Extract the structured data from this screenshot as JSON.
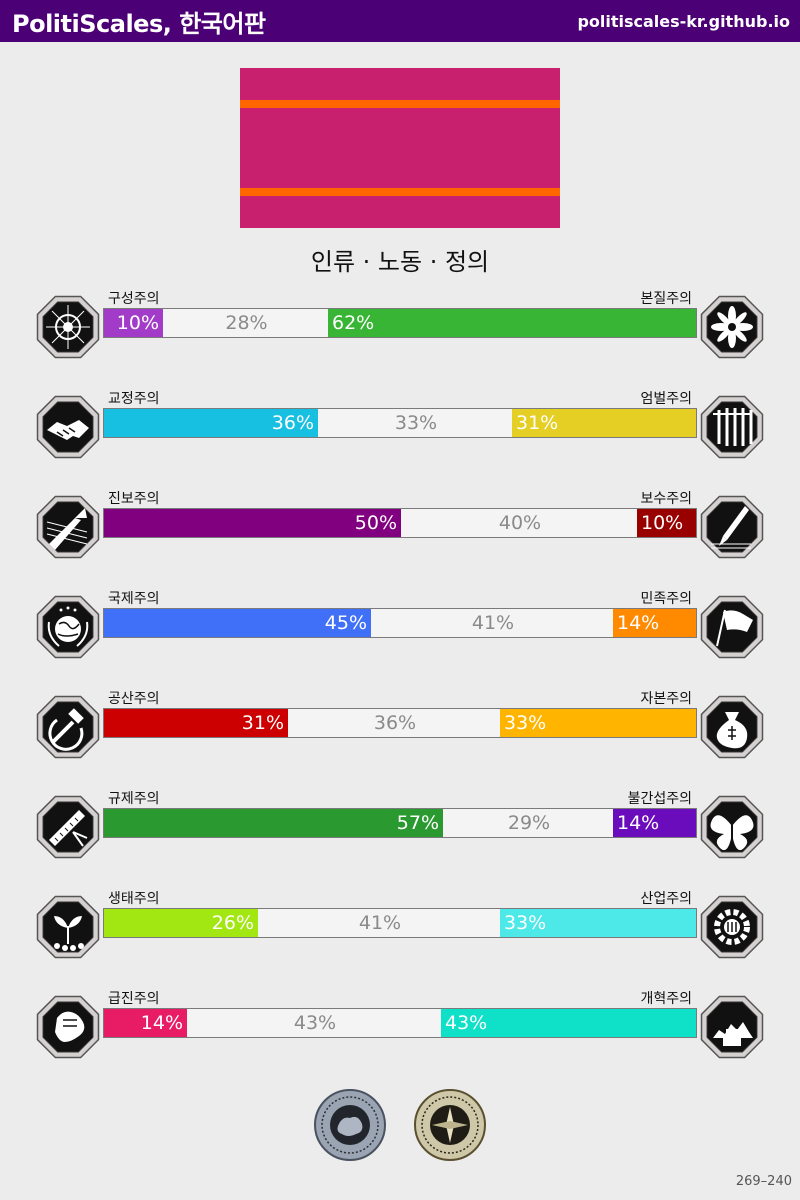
{
  "header": {
    "title": "PolitiScales, 한국어판",
    "site": "politiscales-kr.github.io"
  },
  "flag": {
    "background": "#c8206e",
    "stripe_color": "#ff6600"
  },
  "result_title": "인류 · 노동 · 정의",
  "axes": [
    {
      "left_label": "구성주의",
      "right_label": "본질주의",
      "left_value": 10,
      "middle_value": 28,
      "right_value": 62,
      "left_text": "10%",
      "middle_text": "28%",
      "right_text": "62%",
      "left_color": "#a13bc8",
      "right_color": "#39b535",
      "left_icon": "eye-web-icon",
      "right_icon": "flower-icon"
    },
    {
      "left_label": "교정주의",
      "right_label": "엄벌주의",
      "left_value": 36,
      "middle_value": 33,
      "right_value": 31,
      "left_text": "36%",
      "middle_text": "33%",
      "right_text": "31%",
      "left_color": "#17c0e0",
      "right_color": "#e5cf24",
      "left_icon": "handshake-icon",
      "right_icon": "prison-bars-icon"
    },
    {
      "left_label": "진보주의",
      "right_label": "보수주의",
      "left_value": 50,
      "middle_value": 40,
      "right_value": 10,
      "left_text": "50%",
      "middle_text": "40%",
      "right_text": "10%",
      "left_color": "#800080",
      "right_color": "#990000",
      "left_icon": "rocket-icon",
      "right_icon": "quill-pen-icon"
    },
    {
      "left_label": "국제주의",
      "right_label": "민족주의",
      "left_value": 45,
      "middle_value": 41,
      "right_value": 14,
      "left_text": "45%",
      "middle_text": "41%",
      "right_text": "14%",
      "left_color": "#4070f8",
      "right_color": "#ff8a00",
      "left_icon": "globe-laurel-icon",
      "right_icon": "flag-icon"
    },
    {
      "left_label": "공산주의",
      "right_label": "자본주의",
      "left_value": 31,
      "middle_value": 36,
      "right_value": 33,
      "left_text": "31%",
      "middle_text": "36%",
      "right_text": "33%",
      "left_color": "#cc0000",
      "right_color": "#ffb500",
      "left_icon": "hammer-sickle-icon",
      "right_icon": "money-bag-icon"
    },
    {
      "left_label": "규제주의",
      "right_label": "불간섭주의",
      "left_value": 57,
      "middle_value": 29,
      "right_value": 14,
      "left_text": "57%",
      "middle_text": "29%",
      "right_text": "14%",
      "left_color": "#2a9a30",
      "right_color": "#6a0bbc",
      "left_icon": "ruler-compass-icon",
      "right_icon": "butterfly-icon"
    },
    {
      "left_label": "생태주의",
      "right_label": "산업주의",
      "left_value": 26,
      "middle_value": 41,
      "right_value": 33,
      "left_text": "26%",
      "middle_text": "41%",
      "right_text": "33%",
      "left_color": "#a2e612",
      "right_color": "#4de8e8",
      "left_icon": "sprout-icon",
      "right_icon": "gear-icon"
    },
    {
      "left_label": "급진주의",
      "right_label": "개혁주의",
      "left_value": 14,
      "middle_value": 43,
      "right_value": 43,
      "left_text": "14%",
      "middle_text": "43%",
      "right_text": "43%",
      "left_color": "#e81c64",
      "right_color": "#0fe0c8",
      "left_icon": "fist-icon",
      "right_icon": "city-ballot-icon"
    }
  ],
  "badges": [
    {
      "name": "brain-seal-icon",
      "color": "#9aa4b2"
    },
    {
      "name": "compass-seal-icon",
      "color": "#cfc8a8"
    }
  ],
  "footer": {
    "range": "269–240"
  }
}
